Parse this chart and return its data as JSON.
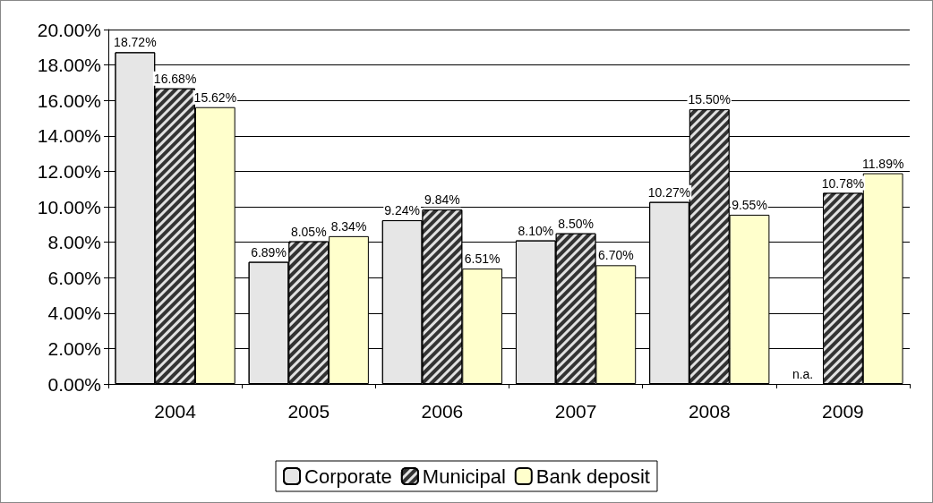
{
  "chart_data": {
    "type": "bar",
    "categories": [
      "2004",
      "2005",
      "2006",
      "2007",
      "2008",
      "2009"
    ],
    "series": [
      {
        "name": "Corporate",
        "color": "#e6e6e6",
        "values": [
          18.72,
          6.89,
          9.24,
          8.1,
          10.27,
          null
        ],
        "value_labels": [
          "18.72%",
          "6.89%",
          "9.24%",
          "8.10%",
          "10.27%",
          "n.a."
        ]
      },
      {
        "name": "Municipal",
        "color": "#333333",
        "values": [
          16.68,
          8.05,
          9.84,
          8.5,
          15.5,
          10.78
        ],
        "value_labels": [
          "16.68%",
          "8.05%",
          "9.84%",
          "8.50%",
          "15.50%",
          "10.78%"
        ]
      },
      {
        "name": "Bank deposit",
        "color": "#ffffcc",
        "values": [
          15.62,
          8.34,
          6.51,
          6.7,
          9.55,
          11.89
        ],
        "value_labels": [
          "15.62%",
          "8.34%",
          "6.51%",
          "6.70%",
          "9.55%",
          "11.89%"
        ]
      }
    ],
    "ylim": [
      0,
      20
    ],
    "yticks": [
      {
        "value": 0,
        "label": "0.00%"
      },
      {
        "value": 2,
        "label": "2.00%"
      },
      {
        "value": 4,
        "label": "4.00%"
      },
      {
        "value": 6,
        "label": "6.00%"
      },
      {
        "value": 8,
        "label": "8.00%"
      },
      {
        "value": 10,
        "label": "10.00%"
      },
      {
        "value": 12,
        "label": "12.00%"
      },
      {
        "value": 14,
        "label": "14.00%"
      },
      {
        "value": 16,
        "label": "16.00%"
      },
      {
        "value": 18,
        "label": "18.00%"
      },
      {
        "value": 20,
        "label": "20.00%"
      }
    ],
    "grid": "y",
    "legend": "bottom"
  }
}
